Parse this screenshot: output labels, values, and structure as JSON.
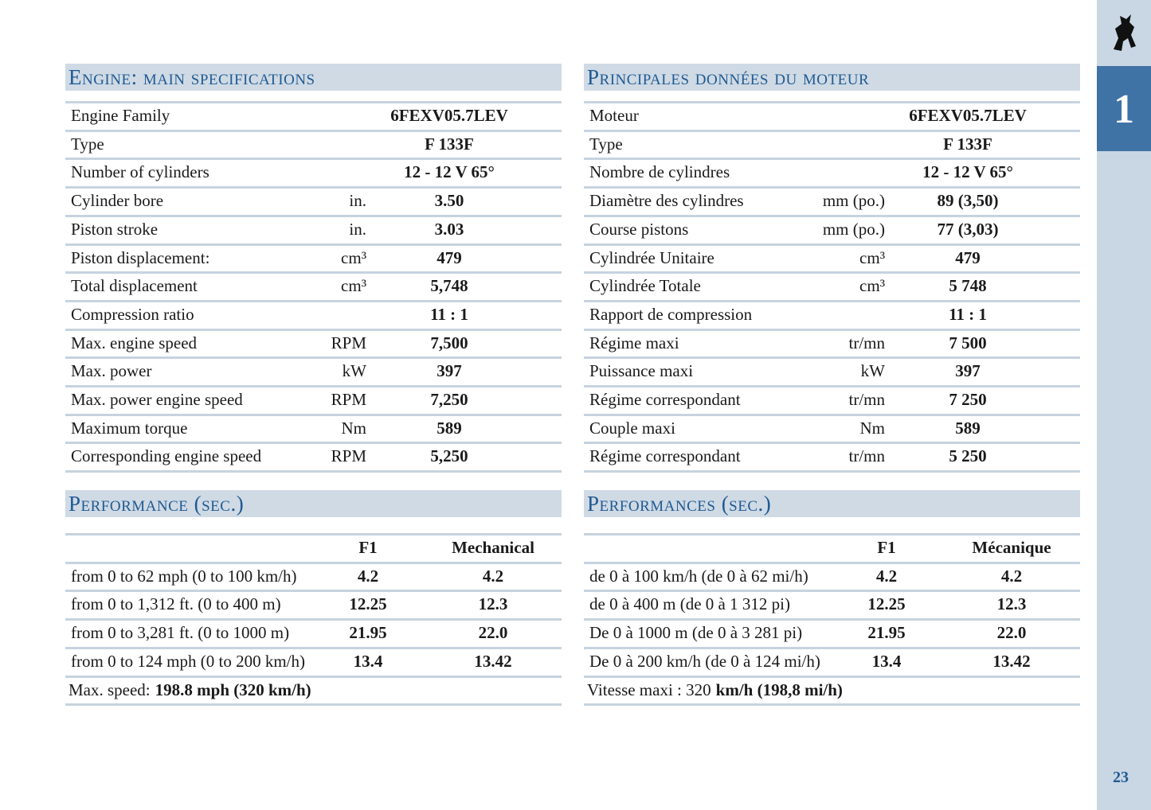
{
  "sidebar": {
    "chapter": "1",
    "page_number": "23"
  },
  "left": {
    "engine": {
      "title": "Engine: main specifications",
      "rows": [
        {
          "label": "Engine Family",
          "value": "6FEXV05.7LEV"
        },
        {
          "label": "Type",
          "value": "F 133F"
        },
        {
          "label": "Number of cylinders",
          "value": "12 - 12 V 65°"
        },
        {
          "label": "Cylinder bore",
          "unit": "in.",
          "value": "3.50"
        },
        {
          "label": "Piston stroke",
          "unit": "in.",
          "value": "3.03"
        },
        {
          "label": "Piston displacement:",
          "unit": "cm³",
          "value": "479"
        },
        {
          "label": "Total displacement",
          "unit": "cm³",
          "value": "5,748"
        },
        {
          "label": "Compression ratio",
          "value": "11 : 1"
        },
        {
          "label": "Max. engine speed",
          "unit": "RPM",
          "value": "7,500"
        },
        {
          "label": "Max. power",
          "unit": "kW",
          "value": "397"
        },
        {
          "label": "Max. power engine speed",
          "unit": "RPM",
          "value": "7,250"
        },
        {
          "label": "Maximum torque",
          "unit": "Nm",
          "value": "589"
        },
        {
          "label": "Corresponding engine speed",
          "unit": "RPM",
          "value": "5,250"
        }
      ]
    },
    "performance": {
      "title": "Performance (sec.)",
      "columns": [
        "F1",
        "Mechanical"
      ],
      "rows": [
        {
          "label": "from 0 to 62 mph (0 to 100 km/h)",
          "values": [
            "4.2",
            "4.2"
          ]
        },
        {
          "label": "from 0 to 1,312 ft. (0 to 400 m)",
          "values": [
            "12.25",
            "12.3"
          ]
        },
        {
          "label": "from 0 to 3,281 ft. (0 to 1000  m)",
          "values": [
            "21.95",
            "22.0"
          ]
        },
        {
          "label": "from 0 to 124 mph (0 to 200 km/h)",
          "values": [
            "13.4",
            "13.42"
          ]
        }
      ],
      "max_speed": {
        "label": "Max. speed:",
        "value": "198.8 mph (320 km/h)"
      }
    }
  },
  "right": {
    "engine": {
      "title": "Principales données du moteur",
      "rows": [
        {
          "label": "Moteur",
          "value": "6FEXV05.7LEV"
        },
        {
          "label": "Type",
          "value": "F 133F"
        },
        {
          "label": "Nombre de cylindres",
          "value": "12 - 12 V 65°"
        },
        {
          "label": "Diamètre des cylindres",
          "unit": "mm (po.)",
          "value": "89 (3,50)"
        },
        {
          "label": "Course pistons",
          "unit": "mm (po.)",
          "value": "77 (3,03)"
        },
        {
          "label": "Cylindrée Unitaire",
          "unit": "cm³",
          "value": "479"
        },
        {
          "label": "Cylindrée Totale",
          "unit": "cm³",
          "value": "5 748"
        },
        {
          "label": "Rapport de compression",
          "value": "11 : 1"
        },
        {
          "label": "Régime maxi",
          "unit": "tr/mn",
          "value": "7 500"
        },
        {
          "label": "Puissance maxi",
          "unit": "kW",
          "value": "397"
        },
        {
          "label": "Régime correspondant",
          "unit": "tr/mn",
          "value": "7 250"
        },
        {
          "label": "Couple maxi",
          "unit": "Nm",
          "value": "589"
        },
        {
          "label": "Régime correspondant",
          "unit": "tr/mn",
          "value": "5 250"
        }
      ]
    },
    "performance": {
      "title": "Performances (sec.)",
      "columns": [
        "F1",
        "Mécanique"
      ],
      "rows": [
        {
          "label": "de 0 à 100 km/h (de 0 à 62 mi/h)",
          "values": [
            "4.2",
            "4.2"
          ]
        },
        {
          "label": "de 0 à 400 m (de 0 à 1 312 pi)",
          "values": [
            "12.25",
            "12.3"
          ]
        },
        {
          "label": "De 0 à 1000 m (de 0 à 3 281 pi)",
          "values": [
            "21.95",
            "22.0"
          ]
        },
        {
          "label": "De 0 à 200 km/h (de 0 à 124 mi/h)",
          "values": [
            "13.4",
            "13.42"
          ]
        }
      ],
      "max_speed": {
        "label": "Vitesse maxi : 320",
        "value": "km/h (198,8 mi/h)"
      }
    }
  }
}
